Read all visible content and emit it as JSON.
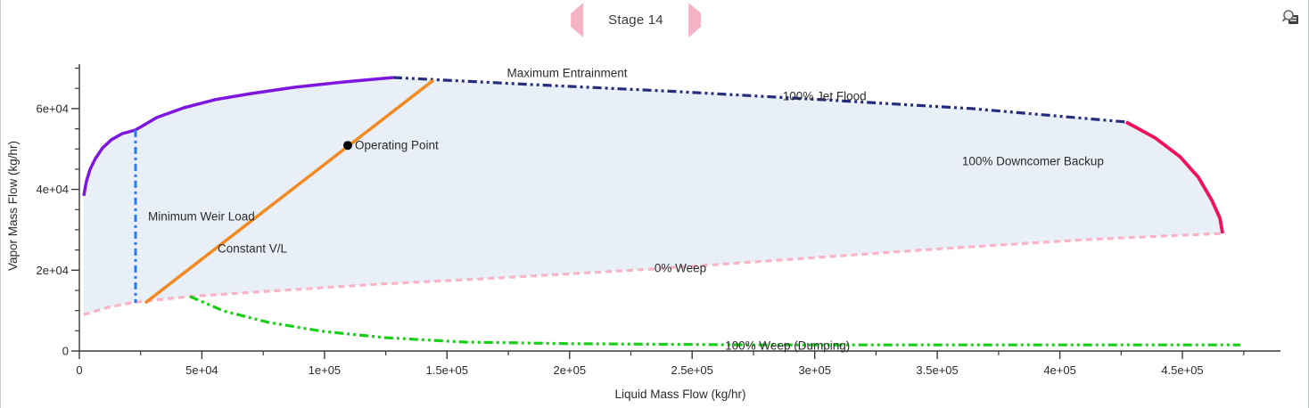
{
  "header": {
    "stage_label": "Stage 14",
    "prev_icon": "left-arrow",
    "next_icon": "right-arrow",
    "arrow_color": "#f7b3c6"
  },
  "toolbar": {
    "preview_icon": "print-preview"
  },
  "chart_data": {
    "type": "line",
    "title": "Stage 14",
    "xlabel": "Liquid Mass Flow (kg/hr)",
    "ylabel": "Vapor Mass Flow (kg/hr)",
    "xlim": [
      0,
      490000
    ],
    "ylim": [
      0,
      71000
    ],
    "grid": false,
    "legend": "inline-labels",
    "x_major_ticks": [
      0,
      50000,
      100000,
      150000,
      200000,
      250000,
      300000,
      350000,
      400000,
      450000
    ],
    "x_tick_labels": [
      "0",
      "5e+04",
      "1e+05",
      "1.5e+05",
      "2e+05",
      "2.5e+05",
      "3e+05",
      "3.5e+05",
      "4e+05",
      "4.5e+05"
    ],
    "x_minor_step": 25000,
    "y_major_ticks": [
      0,
      20000,
      40000,
      60000
    ],
    "y_tick_labels": [
      "0",
      "2e+04",
      "4e+04",
      "6e+04"
    ],
    "y_minor_step": 5000,
    "axis_color": "#3a3a3a",
    "fill_region": {
      "color": "#e9eff6",
      "outline_series": [
        "Maximum Entrainment",
        "100% Jet Flood",
        "100% Downcomer Backup"
      ],
      "return_series": "0% Weep"
    },
    "series": [
      {
        "name": "Maximum Entrainment",
        "color": "#7d17e0",
        "style": "solid",
        "width": 3.5,
        "points": [
          [
            1800,
            38400
          ],
          [
            2900,
            42100
          ],
          [
            4400,
            45000
          ],
          [
            6500,
            47600
          ],
          [
            9500,
            50300
          ],
          [
            13100,
            52300
          ],
          [
            17500,
            53800
          ],
          [
            22900,
            54700
          ],
          [
            31600,
            57800
          ],
          [
            42600,
            60200
          ],
          [
            55300,
            62200
          ],
          [
            69800,
            63700
          ],
          [
            88000,
            65300
          ],
          [
            108000,
            66600
          ],
          [
            128000,
            67700
          ]
        ]
      },
      {
        "name": "100% Jet Flood",
        "color": "#262d7e",
        "style": "dash-dot-dot",
        "width": 3.2,
        "points": [
          [
            128000,
            67700
          ],
          [
            186000,
            65900
          ],
          [
            244000,
            64200
          ],
          [
            303000,
            62200
          ],
          [
            364000,
            60000
          ],
          [
            427000,
            56700
          ]
        ]
      },
      {
        "name": "100% Downcomer Backup",
        "color": "#f2105a",
        "style": "solid",
        "width": 3.8,
        "points": [
          [
            427000,
            56700
          ],
          [
            439000,
            52700
          ],
          [
            449000,
            48100
          ],
          [
            456500,
            43000
          ],
          [
            462000,
            37300
          ],
          [
            465300,
            32900
          ],
          [
            466400,
            29100
          ]
        ]
      },
      {
        "name": "0% Weep",
        "color": "#f9b3c7",
        "style": "dash",
        "width": 3.2,
        "points": [
          [
            1800,
            9000
          ],
          [
            11600,
            10800
          ],
          [
            22900,
            12100
          ],
          [
            45100,
            13500
          ],
          [
            77100,
            14800
          ],
          [
            120800,
            16500
          ],
          [
            171700,
            18100
          ],
          [
            234300,
            20300
          ],
          [
            295400,
            22900
          ],
          [
            353600,
            25400
          ],
          [
            411800,
            27600
          ],
          [
            466400,
            29100
          ]
        ]
      },
      {
        "name": "100% Weep (Dumping)",
        "color": "#16d016",
        "style": "dash-dot-dot",
        "width": 3.2,
        "points": [
          [
            45100,
            13500
          ],
          [
            58900,
            9900
          ],
          [
            77100,
            7100
          ],
          [
            98900,
            4900
          ],
          [
            124400,
            3300
          ],
          [
            157200,
            2200
          ],
          [
            200800,
            1800
          ],
          [
            277200,
            1500
          ],
          [
            368200,
            1500
          ],
          [
            473600,
            1500
          ]
        ]
      },
      {
        "name": "Minimum Weir Load",
        "color": "#2b7bf0",
        "style": "dash-dot",
        "width": 3.0,
        "points": [
          [
            22900,
            54700
          ],
          [
            22900,
            11900
          ]
        ]
      },
      {
        "name": "Constant V/L",
        "color": "#f28a21",
        "style": "solid",
        "width": 3.5,
        "points": [
          [
            26900,
            11900
          ],
          [
            144400,
            67000
          ]
        ]
      }
    ],
    "operating_point": {
      "label": "Operating Point",
      "x": 109500,
      "y": 50900,
      "color": "#000000"
    },
    "curve_labels": [
      {
        "text": "Maximum Entrainment",
        "x": 199000,
        "y": 68800,
        "anchor": "middle"
      },
      {
        "text": "100% Jet Flood",
        "x": 304000,
        "y": 63100,
        "anchor": "middle"
      },
      {
        "text": "100% Downcomer Backup",
        "x": 389000,
        "y": 47000,
        "anchor": "middle"
      },
      {
        "text": "0% Weep",
        "x": 245200,
        "y": 20500,
        "anchor": "middle"
      },
      {
        "text": "100% Weep (Dumping)",
        "x": 288900,
        "y": 1300,
        "anchor": "middle"
      },
      {
        "text": "Minimum Weir Load",
        "x": 28000,
        "y": 33300,
        "anchor": "start"
      },
      {
        "text": "Constant V/L",
        "x": 56400,
        "y": 25400,
        "anchor": "start"
      }
    ]
  }
}
